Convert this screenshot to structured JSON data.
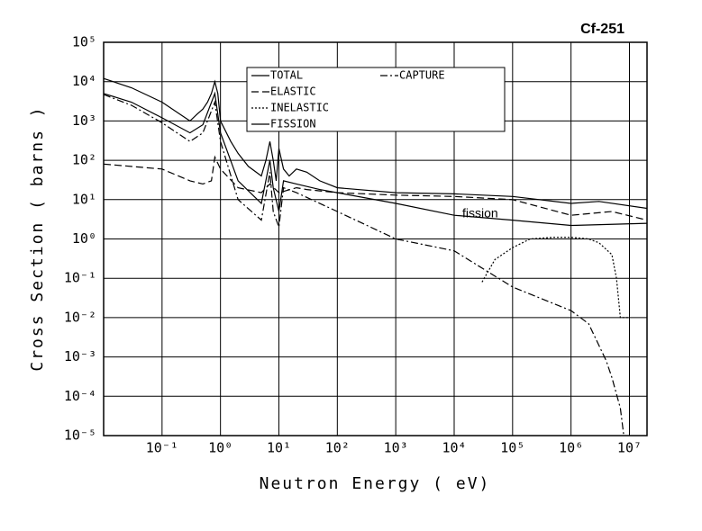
{
  "chart_data": {
    "type": "line",
    "title": "Cf-251",
    "xlabel": "Neutron Energy ( eV)",
    "ylabel": "Cross Section ( barns )",
    "annotation": "fission",
    "xlog": true,
    "ylog": true,
    "grid": true,
    "xlim": [
      0.01,
      20000000
    ],
    "ylim": [
      1e-05,
      100000
    ],
    "xticks": [
      {
        "value": 0.1,
        "label": "10⁻¹"
      },
      {
        "value": 1,
        "label": "10⁰"
      },
      {
        "value": 10,
        "label": "10¹"
      },
      {
        "value": 100,
        "label": "10²"
      },
      {
        "value": 1000,
        "label": "10³"
      },
      {
        "value": 10000,
        "label": "10⁴"
      },
      {
        "value": 100000,
        "label": "10⁵"
      },
      {
        "value": 1000000,
        "label": "10⁶"
      },
      {
        "value": 10000000,
        "label": "10⁷"
      }
    ],
    "yticks": [
      {
        "value": 1e-05,
        "label": "10⁻⁵"
      },
      {
        "value": 0.0001,
        "label": "10⁻⁴"
      },
      {
        "value": 0.001,
        "label": "10⁻³"
      },
      {
        "value": 0.01,
        "label": "10⁻²"
      },
      {
        "value": 0.1,
        "label": "10⁻¹"
      },
      {
        "value": 1,
        "label": "10⁰"
      },
      {
        "value": 10,
        "label": "10¹"
      },
      {
        "value": 100,
        "label": "10²"
      },
      {
        "value": 1000,
        "label": "10³"
      },
      {
        "value": 10000,
        "label": "10⁴"
      },
      {
        "value": 100000,
        "label": "10⁵"
      }
    ],
    "series": [
      {
        "name": "TOTAL",
        "color": "#000000",
        "dash": "solid",
        "x": [
          0.01,
          0.03,
          0.1,
          0.3,
          0.4,
          0.5,
          0.6,
          0.7,
          0.8,
          0.9,
          1,
          1.5,
          2,
          3,
          5,
          6,
          7,
          8,
          9,
          10,
          12,
          15,
          20,
          30,
          50,
          100,
          1000,
          10000,
          100000,
          1000000,
          3000000,
          20000000
        ],
        "values": [
          12000,
          7000,
          3000,
          1000,
          1500,
          2000,
          3000,
          5000,
          10000,
          5000,
          1000,
          300,
          150,
          70,
          40,
          100,
          300,
          100,
          30,
          200,
          60,
          40,
          60,
          50,
          30,
          20,
          15,
          14,
          12,
          8,
          9,
          6
        ]
      },
      {
        "name": "ELASTIC",
        "color": "#000000",
        "dash": "dashed",
        "x": [
          0.01,
          0.1,
          0.3,
          0.5,
          0.7,
          0.8,
          1,
          2,
          5,
          7,
          10,
          20,
          30,
          100,
          1000,
          10000,
          100000,
          1000000,
          5000000,
          20000000
        ],
        "values": [
          80,
          60,
          30,
          25,
          30,
          120,
          60,
          20,
          15,
          25,
          15,
          20,
          18,
          15,
          13,
          12,
          10,
          4,
          5,
          3
        ]
      },
      {
        "name": "INELASTIC",
        "color": "#000000",
        "dash": "dotted",
        "x": [
          30000,
          50000,
          100000,
          200000,
          500000,
          1000000,
          2000000,
          3000000,
          5000000,
          6000000,
          7000000,
          10000000
        ],
        "values": [
          0.08,
          0.3,
          0.6,
          1,
          1.1,
          1.1,
          1,
          0.8,
          0.4,
          0.1,
          0.01,
          0.01
        ]
      },
      {
        "name": "FISSION",
        "color": "#000000",
        "dash": "solid",
        "x": [
          0.01,
          0.03,
          0.1,
          0.3,
          0.5,
          0.8,
          1,
          2,
          5,
          7,
          8,
          10,
          12,
          20,
          50,
          100,
          1000,
          10000,
          100000,
          1000000,
          20000000
        ],
        "values": [
          5000,
          3000,
          1200,
          500,
          800,
          5000,
          500,
          30,
          8,
          100,
          20,
          5,
          30,
          25,
          18,
          15,
          8,
          4,
          3,
          2.2,
          2.5
        ]
      },
      {
        "name": "CAPTURE",
        "color": "#000000",
        "dash": "dashdot",
        "x": [
          0.01,
          0.03,
          0.1,
          0.3,
          0.5,
          0.8,
          1,
          2,
          5,
          7,
          8,
          10,
          12,
          20,
          100,
          1000,
          10000,
          100000,
          1000000,
          2000000,
          4000000,
          5000000,
          7000000,
          8000000
        ],
        "values": [
          4700,
          2500,
          900,
          300,
          500,
          3000,
          300,
          10,
          3,
          50,
          5,
          2,
          20,
          15,
          5,
          1,
          0.5,
          0.06,
          0.015,
          0.007,
          0.0008,
          0.0003,
          5e-05,
          1e-05
        ]
      }
    ]
  }
}
